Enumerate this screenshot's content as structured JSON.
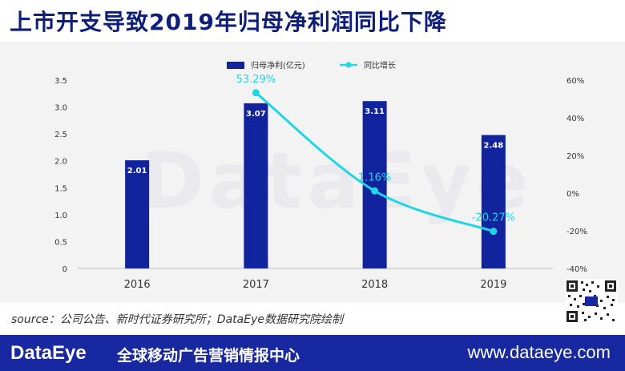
{
  "title": "上市开支导致2019年归母净利润同比下降",
  "source": "source：公司公告、新时代证券研究所；DataEye数据研究院绘制",
  "watermark": "DataEye",
  "footer": {
    "brand": "DataEye",
    "slogan": "全球移动广告营销情报中心",
    "url": "www.dataeye.com"
  },
  "colors": {
    "bar": "#12239e",
    "line": "#1fd6e6",
    "title": "#0d1f7a",
    "footer_bg": "#1728a0"
  },
  "chart_data": {
    "type": "bar",
    "categories": [
      "2016",
      "2017",
      "2018",
      "2019"
    ],
    "series": [
      {
        "name": "归母净利(亿元)",
        "type": "bar",
        "axis": "left",
        "values": [
          2.01,
          3.07,
          3.11,
          2.48
        ],
        "labels": [
          "2.01",
          "3.07",
          "3.11",
          "2.48"
        ]
      },
      {
        "name": "同比增长",
        "type": "line",
        "axis": "right",
        "values": [
          null,
          53.29,
          1.16,
          -20.27
        ],
        "labels": [
          "",
          "53.29%",
          "1.16%",
          "-20.27%"
        ]
      }
    ],
    "y_left": {
      "ylim": [
        0,
        3.5
      ],
      "ticks": [
        "0",
        "0.5",
        "1.0",
        "1.5",
        "2.0",
        "2.5",
        "3.0",
        "3.5"
      ]
    },
    "y_right": {
      "ylim": [
        -40,
        60
      ],
      "ticks": [
        "-40%",
        "-20%",
        "0%",
        "20%",
        "40%",
        "60%"
      ]
    },
    "legend_position": "top-center",
    "grid": false
  }
}
